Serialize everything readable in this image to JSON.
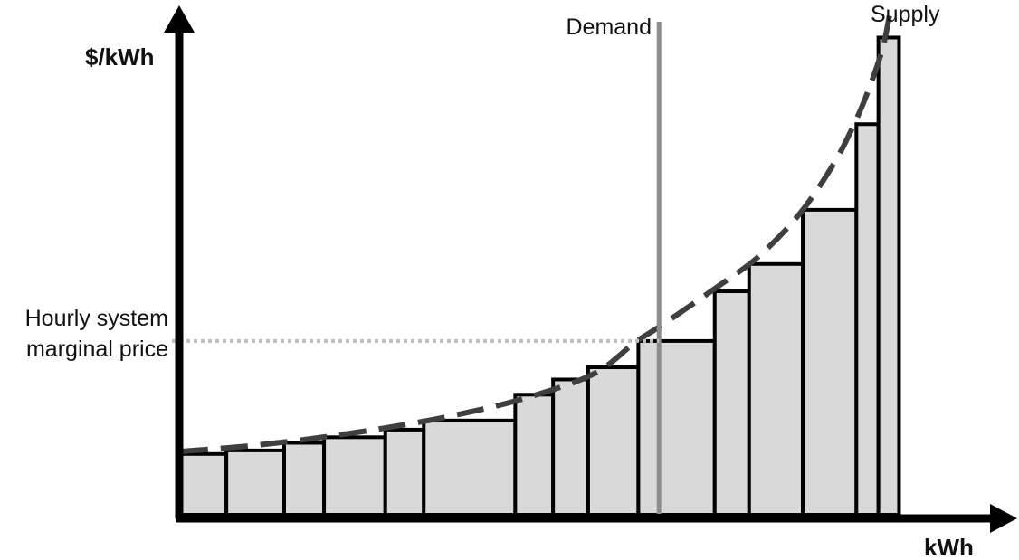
{
  "chart_data": {
    "type": "bar",
    "title": "",
    "xlabel": "kWh",
    "ylabel": "$/kWh",
    "ylim": [
      0,
      100
    ],
    "grid": false,
    "bars": [
      {
        "x0": 0.0,
        "x1": 6.6,
        "value": 12.0
      },
      {
        "x0": 6.6,
        "x1": 15.0,
        "value": 12.7
      },
      {
        "x0": 15.0,
        "x1": 20.8,
        "value": 14.2
      },
      {
        "x0": 20.8,
        "x1": 29.7,
        "value": 15.3
      },
      {
        "x0": 29.7,
        "x1": 35.3,
        "value": 16.8
      },
      {
        "x0": 35.3,
        "x1": 48.6,
        "value": 18.6
      },
      {
        "x0": 48.6,
        "x1": 54.1,
        "value": 23.7
      },
      {
        "x0": 54.1,
        "x1": 59.2,
        "value": 26.7
      },
      {
        "x0": 59.2,
        "x1": 66.5,
        "value": 29.1
      },
      {
        "x0": 66.5,
        "x1": 77.6,
        "value": 34.3
      },
      {
        "x0": 77.6,
        "x1": 82.6,
        "value": 44.1
      },
      {
        "x0": 82.6,
        "x1": 90.4,
        "value": 49.5
      },
      {
        "x0": 90.4,
        "x1": 98.2,
        "value": 60.2
      },
      {
        "x0": 98.2,
        "x1": 101.4,
        "value": 77.1
      },
      {
        "x0": 101.4,
        "x1": 104.4,
        "value": 94.2
      }
    ],
    "supply_curve": {
      "name": "Supply",
      "x": [
        0,
        10,
        20,
        30,
        40,
        50,
        60,
        66,
        70,
        78,
        84,
        90,
        95,
        98,
        100,
        102,
        103
      ],
      "y": [
        12.5,
        13.6,
        15.2,
        17.2,
        19.7,
        23.0,
        27.8,
        34.0,
        37.5,
        45.0,
        51.0,
        59.5,
        69.5,
        77.5,
        84.0,
        92.0,
        98.5
      ]
    },
    "demand_line": {
      "name": "Demand",
      "x": 69.5
    },
    "marginal_price": {
      "label_line1": "Hourly system",
      "label_line2": "marginal price",
      "y": 34.3
    }
  },
  "colors": {
    "bar_fill": "#d9d9d9",
    "bar_stroke": "#000000",
    "supply": "#3f3f3f",
    "demand": "#8c8c8c",
    "price_line": "#bfbfbf",
    "axis": "#000000"
  }
}
